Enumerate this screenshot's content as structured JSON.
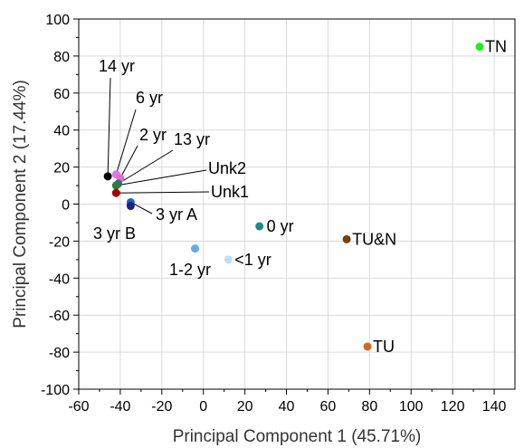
{
  "chart_data": {
    "type": "scatter",
    "title": "",
    "xlabel": "Principal Component 1 (45.71%)",
    "ylabel": "Principal Component 2 (17.44%)",
    "xlim": [
      -60,
      150
    ],
    "ylim": [
      -100,
      100
    ],
    "x_ticks": [
      -60,
      -40,
      -20,
      0,
      20,
      40,
      60,
      80,
      100,
      120,
      140
    ],
    "y_ticks": [
      -100,
      -80,
      -60,
      -40,
      -20,
      0,
      20,
      40,
      60,
      80,
      100
    ],
    "grid": true,
    "legend": "none",
    "points": [
      {
        "label": "TN",
        "x": 133,
        "y": 85,
        "color": "#22ee22"
      },
      {
        "label": "14 yr",
        "x": -46,
        "y": 15,
        "color": "#000000"
      },
      {
        "label": "6 yr",
        "x": -42,
        "y": 16,
        "color": "#dd77ee"
      },
      {
        "label": "2 yr",
        "x": -40,
        "y": 14,
        "color": "#ee66cc"
      },
      {
        "label": "13 yr",
        "x": -41,
        "y": 11,
        "color": "#1a7a7a"
      },
      {
        "label": "Unk2",
        "x": -42,
        "y": 10,
        "color": "#2e7d32"
      },
      {
        "label": "Unk1",
        "x": -42,
        "y": 6,
        "color": "#aa0000"
      },
      {
        "label": "3 yr A",
        "x": -35,
        "y": 1,
        "color": "#1565c0"
      },
      {
        "label": "3 yr B",
        "x": -35,
        "y": -1,
        "color": "#1a237e"
      },
      {
        "label": "0 yr",
        "x": 27,
        "y": -12,
        "color": "#1b8a8a"
      },
      {
        "label": "TU&N",
        "x": 69,
        "y": -19,
        "color": "#7b3f00"
      },
      {
        "label": "1-2 yr",
        "x": -4,
        "y": -24,
        "color": "#64a8ee"
      },
      {
        "label": "<1 yr",
        "x": 12,
        "y": -30,
        "color": "#bbdefb"
      },
      {
        "label": "TU",
        "x": 79,
        "y": -77,
        "color": "#d2691e"
      }
    ]
  }
}
